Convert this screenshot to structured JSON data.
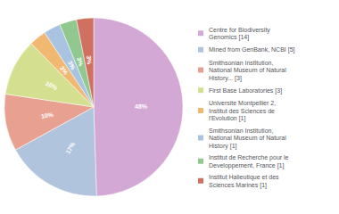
{
  "chart_data": {
    "type": "pie",
    "categories": [
      "Centre for Biodiversity\nGenomics [14]",
      "Mined from GenBank, NCBI [5]",
      "Smithsonian Institution,\nNational Museum of Natural\nHistory... [3]",
      "First Base Laboratories [3]",
      "Universite Montpellier 2,\nInstitut des Sciences de\nl'Evolution [1]",
      "Smithsonian Institution,\nNational Museum of Natural\nHistory [1]",
      "Institut de Recherche pour le\nDeveloppement, France [1]",
      "Institut Halieutique et des\nSciences Marines [1]"
    ],
    "values": [
      48,
      17,
      10,
      10,
      3,
      3,
      3,
      3
    ],
    "value_labels": [
      "48%",
      "17%",
      "10%",
      "10%",
      "3%",
      "3%",
      "3%",
      "3%"
    ],
    "colors": [
      "#d4a8d4",
      "#b0c4de",
      "#e8a090",
      "#d4e090",
      "#f0b870",
      "#a8c4e0",
      "#90c890",
      "#d07060"
    ],
    "data_labels": true,
    "legend": "right"
  }
}
